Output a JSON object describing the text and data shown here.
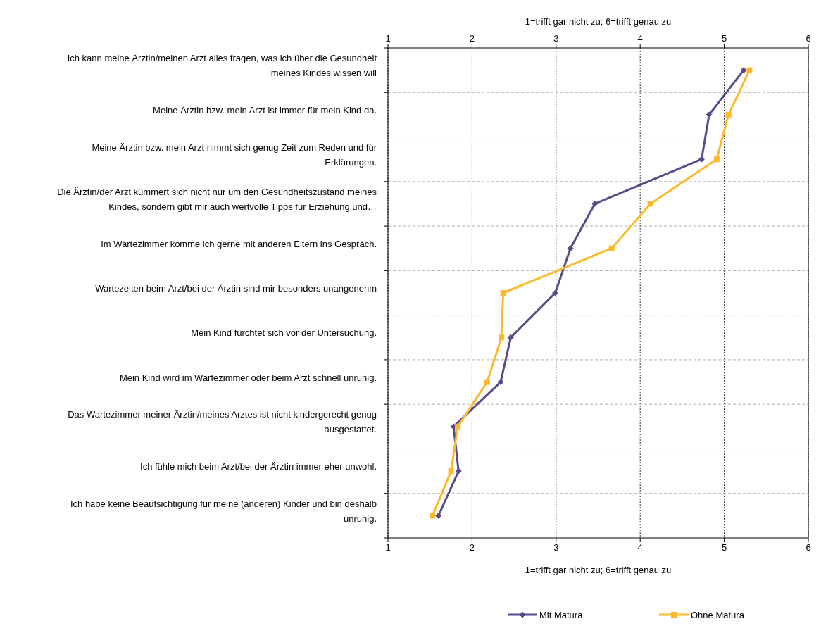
{
  "chart_data": {
    "type": "line",
    "orientation": "horizontal",
    "categories": [
      "Ich kann meine Ärztin/meinen Arzt alles fragen, was ich über die Gesundheit meines Kindes wissen will",
      "Meine Ärztin bzw. mein Arzt ist immer für mein Kind da.",
      "Meine Ärztin bzw. mein Arzt nimmt sich genug Zeit zum Reden und für Erklärungen.",
      "Die Ärztin/der Arzt kümmert sich nicht nur um den Gesundheitszustand meines Kindes, sondern gibt mir auch wertvolle Tipps für Erziehung und…",
      "Im Wartezimmer komme ich gerne mit anderen Eltern ins Gespräch.",
      "Wartezeiten beim Arzt/bei der Ärztin sind mir besonders unangenehm",
      "Mein Kind fürchtet sich vor der Untersuchung.",
      "Mein Kind wird im Wartezimmer oder beim Arzt schnell unruhig.",
      "Das Wartezimmer meiner Ärztin/meines Arztes ist nicht kindergerecht genug ausgestattet.",
      "Ich fühle mich beim Arzt/bei der Ärztin immer eher unwohl.",
      "Ich habe keine Beaufsichtigung für meine (anderen) Kinder und bin deshalb unruhig."
    ],
    "series": [
      {
        "name": "Mit Matura",
        "color": "#5b4a8b",
        "marker": "diamond",
        "values": [
          5.23,
          4.82,
          4.73,
          3.46,
          3.17,
          2.99,
          2.46,
          2.34,
          1.78,
          1.84,
          1.6
        ]
      },
      {
        "name": "Ohne Matura",
        "color": "#fdb92a",
        "marker": "square",
        "values": [
          5.3,
          5.05,
          4.91,
          4.12,
          3.66,
          2.37,
          2.35,
          2.18,
          1.83,
          1.75,
          1.53
        ]
      }
    ],
    "xlabel": "1=trifft gar nicht zu; 6=trifft genau zu",
    "x2label": "1=trifft gar nicht zu; 6=trifft genau zu",
    "xlim": [
      1,
      6
    ],
    "xticks": [
      1,
      2,
      3,
      4,
      5,
      6
    ],
    "x2lim": [
      1,
      6
    ],
    "x2ticks": [
      1,
      2,
      3,
      4,
      5,
      6
    ],
    "grid": true,
    "legend": "bottom"
  }
}
